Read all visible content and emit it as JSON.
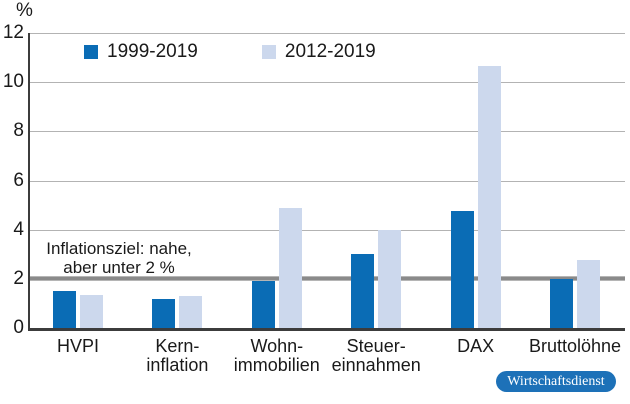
{
  "unit_label": "%",
  "legend": {
    "items": [
      {
        "label": "1999-2019",
        "color": "#0a6cb5"
      },
      {
        "label": "2012-2019",
        "color": "#ccd8ed"
      }
    ]
  },
  "annotation": {
    "line1": "Inflationsziel: nahe,",
    "line2": "aber unter 2 %"
  },
  "badge": {
    "label": "Wirtschaftsdienst",
    "color": "#1d71b8"
  },
  "colors": {
    "series_dark": "#0a6cb5",
    "series_light": "#ccd8ed",
    "gridline": "#b3b3b3",
    "reference_line": "#8a8a8a",
    "axis": "#3c3c3c"
  },
  "chart_data": {
    "type": "bar",
    "categories": [
      "HVPI",
      "Kern-inflation",
      "Wohn-immobilien",
      "Steuer-einnahmen",
      "DAX",
      "Bruttolöhne"
    ],
    "category_lines": [
      [
        "HVPI"
      ],
      [
        "Kern-",
        "inflation"
      ],
      [
        "Wohn-",
        "immobilien"
      ],
      [
        "Steuer-",
        "einnahmen"
      ],
      [
        "DAX"
      ],
      [
        "Bruttolöhne"
      ]
    ],
    "series": [
      {
        "name": "1999-2019",
        "color": "#0a6cb5",
        "values": [
          1.5,
          1.2,
          1.9,
          3.0,
          4.75,
          2.0
        ]
      },
      {
        "name": "2012-2019",
        "color": "#ccd8ed",
        "values": [
          1.35,
          1.3,
          4.9,
          4.0,
          10.65,
          2.75
        ]
      }
    ],
    "title": "",
    "xlabel": "",
    "ylabel": "%",
    "ylim": [
      0,
      12
    ],
    "yticks": [
      0,
      2,
      4,
      6,
      8,
      10,
      12
    ],
    "grid": true,
    "legend_position": "top-left-inside",
    "reference_line_y": 2,
    "annotation_text": "Inflationsziel: nahe, aber unter 2 %",
    "source_badge": "Wirtschaftsdienst"
  }
}
